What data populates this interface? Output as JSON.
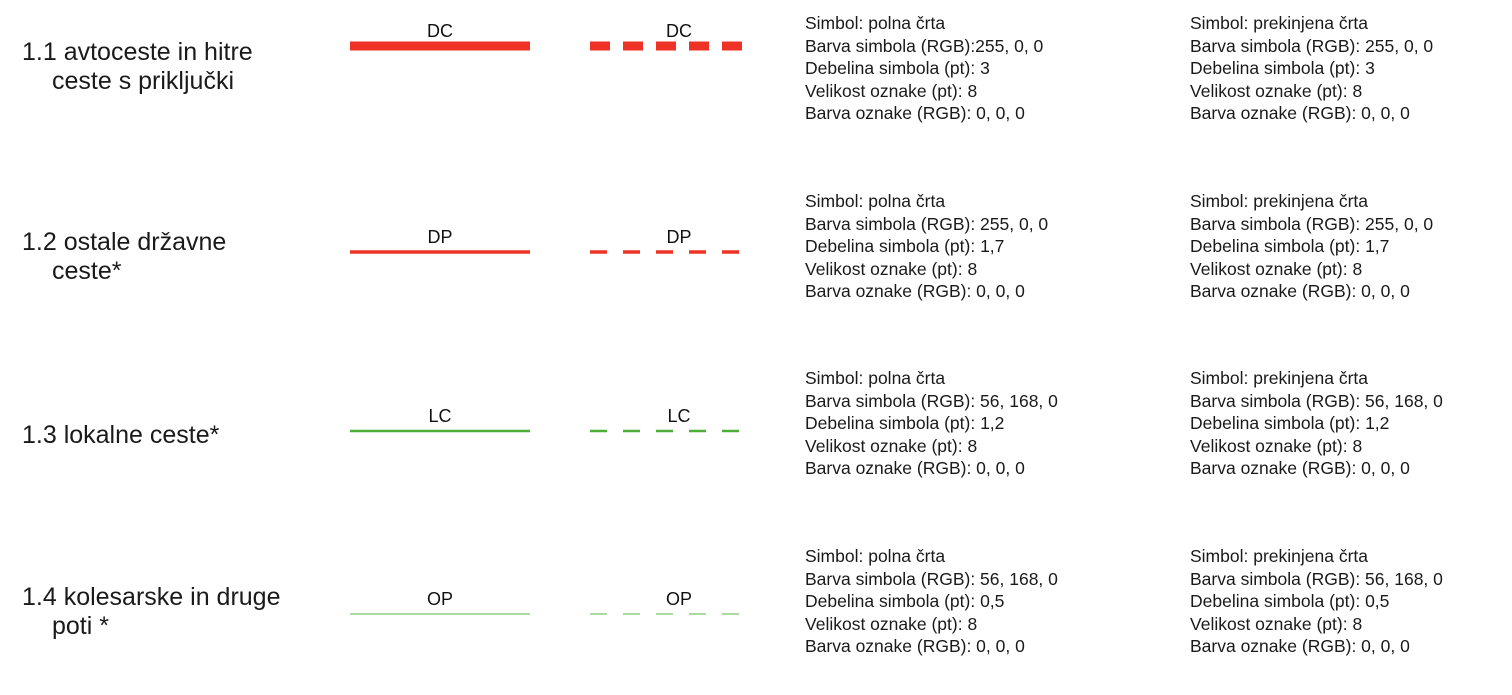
{
  "rows": [
    {
      "category": [
        "1.1 avtoceste in hitre",
        "ceste s priključki"
      ],
      "code": "DC",
      "color": "#ee3326",
      "stroke": 9,
      "solid": [
        "Simbol: polna črta",
        "Barva simbola (RGB):255, 0, 0",
        "Debelina simbola (pt): 3",
        "Velikost oznake (pt): 8",
        "Barva oznake (RGB): 0, 0, 0"
      ],
      "dashed": [
        "Simbol: prekinjena črta",
        "Barva simbola (RGB): 255, 0, 0",
        "Debelina simbola (pt): 3",
        "Velikost oznake (pt): 8",
        "Barva oznake (RGB): 0, 0, 0"
      ]
    },
    {
      "category": [
        "1.2 ostale državne",
        "ceste*"
      ],
      "code": "DP",
      "color": "#ee3326",
      "stroke": 3.5,
      "solid": [
        "Simbol: polna črta",
        "Barva simbola (RGB): 255, 0, 0",
        "Debelina simbola (pt): 1,7",
        "Velikost oznake (pt): 8",
        "Barva oznake (RGB): 0, 0, 0"
      ],
      "dashed": [
        "Simbol: prekinjena črta",
        "Barva simbola (RGB): 255, 0, 0",
        "Debelina simbola (pt): 1,7",
        "Velikost oznake (pt): 8",
        "Barva oznake (RGB): 0, 0, 0"
      ]
    },
    {
      "category": [
        "1.3 lokalne ceste*",
        ""
      ],
      "code": "LC",
      "color": "#4fae3a",
      "stroke": 2.6,
      "solid": [
        "Simbol: polna črta",
        "Barva simbola (RGB): 56, 168, 0",
        "Debelina simbola (pt): 1,2",
        "Velikost oznake (pt): 8",
        "Barva oznake (RGB): 0, 0, 0"
      ],
      "dashed": [
        "Simbol: prekinjena črta",
        "Barva simbola (RGB): 56, 168, 0",
        "Debelina simbola (pt): 1,2",
        "Velikost oznake (pt): 8",
        "Barva oznake (RGB): 0, 0, 0"
      ]
    },
    {
      "category": [
        "1.4 kolesarske in druge",
        "poti *"
      ],
      "code": "OP",
      "color": "#7cc46a",
      "stroke": 1.3,
      "solid": [
        "Simbol: polna črta",
        "Barva simbola (RGB): 56, 168, 0",
        "Debelina simbola (pt): 0,5",
        "Velikost oznake (pt): 8",
        "Barva oznake (RGB): 0, 0, 0"
      ],
      "dashed": [
        "Simbol: prekinjena črta",
        "Barva simbola (RGB): 56, 168, 0",
        "Debelina simbola (pt): 0,5",
        "Velikost oznake (pt): 8",
        "Barva oznake (RGB): 0, 0, 0"
      ]
    }
  ]
}
